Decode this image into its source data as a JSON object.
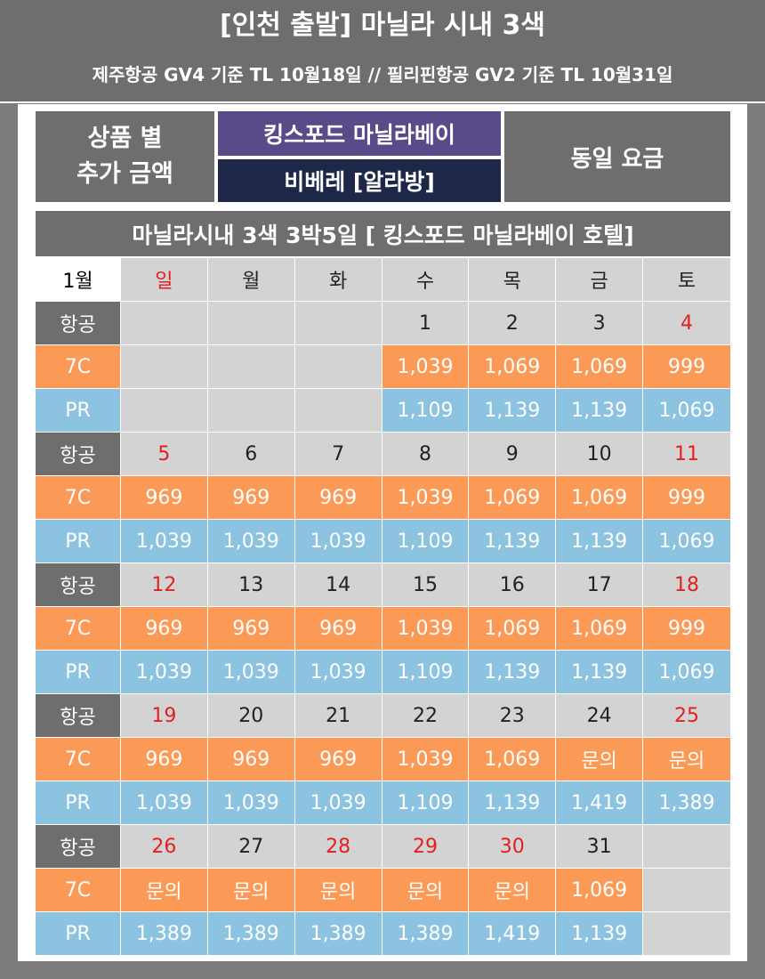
{
  "header": {
    "title": "[인천 출발] 마닐라 시내 3색",
    "subtitle": "제주항공 GV4 기준 TL 10월18일 // 필리핀항공 GV2 기준 TL 10월31일"
  },
  "summary": {
    "left_line1": "상품 별",
    "left_line2": "추가 금액",
    "hotel_1": "킹스포드 마닐라베이",
    "hotel_2": "비베레 [알라방]",
    "right": "동일 요금"
  },
  "banner": "마닐라시내 3색 3박5일 [ 킹스포드 마닐라베이 호텔]",
  "colors": {
    "header_bg": "#6e6e6e",
    "hotel_1_bg": "#5b4a8a",
    "hotel_2_bg": "#1e2748",
    "row_7c_bg": "#fb9a57",
    "row_pr_bg": "#8bc3e0",
    "date_row_bg": "#d3d3d3",
    "holiday_text": "#e32020"
  },
  "calendar": {
    "month": "1월",
    "days": [
      "일",
      "월",
      "화",
      "수",
      "목",
      "금",
      "토"
    ],
    "weeks": [
      {
        "label": "항공",
        "dates": [
          "",
          "",
          "",
          "1",
          "2",
          "3",
          "4"
        ],
        "rows": [
          {
            "label": "7C",
            "values": [
              "",
              "",
              "",
              "1,039",
              "1,069",
              "1,069",
              "999"
            ]
          },
          {
            "label": "PR",
            "values": [
              "",
              "",
              "",
              "1,109",
              "1,139",
              "1,139",
              "1,069"
            ]
          }
        ]
      },
      {
        "label": "항공",
        "dates": [
          "5",
          "6",
          "7",
          "8",
          "9",
          "10",
          "11"
        ],
        "rows": [
          {
            "label": "7C",
            "values": [
              "969",
              "969",
              "969",
              "1,039",
              "1,069",
              "1,069",
              "999"
            ]
          },
          {
            "label": "PR",
            "values": [
              "1,039",
              "1,039",
              "1,039",
              "1,109",
              "1,139",
              "1,139",
              "1,069"
            ]
          }
        ]
      },
      {
        "label": "항공",
        "dates": [
          "12",
          "13",
          "14",
          "15",
          "16",
          "17",
          "18"
        ],
        "rows": [
          {
            "label": "7C",
            "values": [
              "969",
              "969",
              "969",
              "1,039",
              "1,069",
              "1,069",
              "999"
            ]
          },
          {
            "label": "PR",
            "values": [
              "1,039",
              "1,039",
              "1,039",
              "1,109",
              "1,139",
              "1,139",
              "1,069"
            ]
          }
        ]
      },
      {
        "label": "항공",
        "dates": [
          "19",
          "20",
          "21",
          "22",
          "23",
          "24",
          "25"
        ],
        "rows": [
          {
            "label": "7C",
            "values": [
              "969",
              "969",
              "969",
              "1,039",
              "1,069",
              "문의",
              "문의"
            ]
          },
          {
            "label": "PR",
            "values": [
              "1,039",
              "1,039",
              "1,039",
              "1,109",
              "1,139",
              "1,419",
              "1,389"
            ]
          }
        ]
      },
      {
        "label": "항공",
        "dates": [
          "26",
          "27",
          "28",
          "29",
          "30",
          "31",
          ""
        ],
        "rows": [
          {
            "label": "7C",
            "values": [
              "문의",
              "문의",
              "문의",
              "문의",
              "문의",
              "1,069",
              ""
            ]
          },
          {
            "label": "PR",
            "values": [
              "1,389",
              "1,389",
              "1,389",
              "1,389",
              "1,419",
              "1,139",
              ""
            ]
          }
        ]
      }
    ]
  }
}
